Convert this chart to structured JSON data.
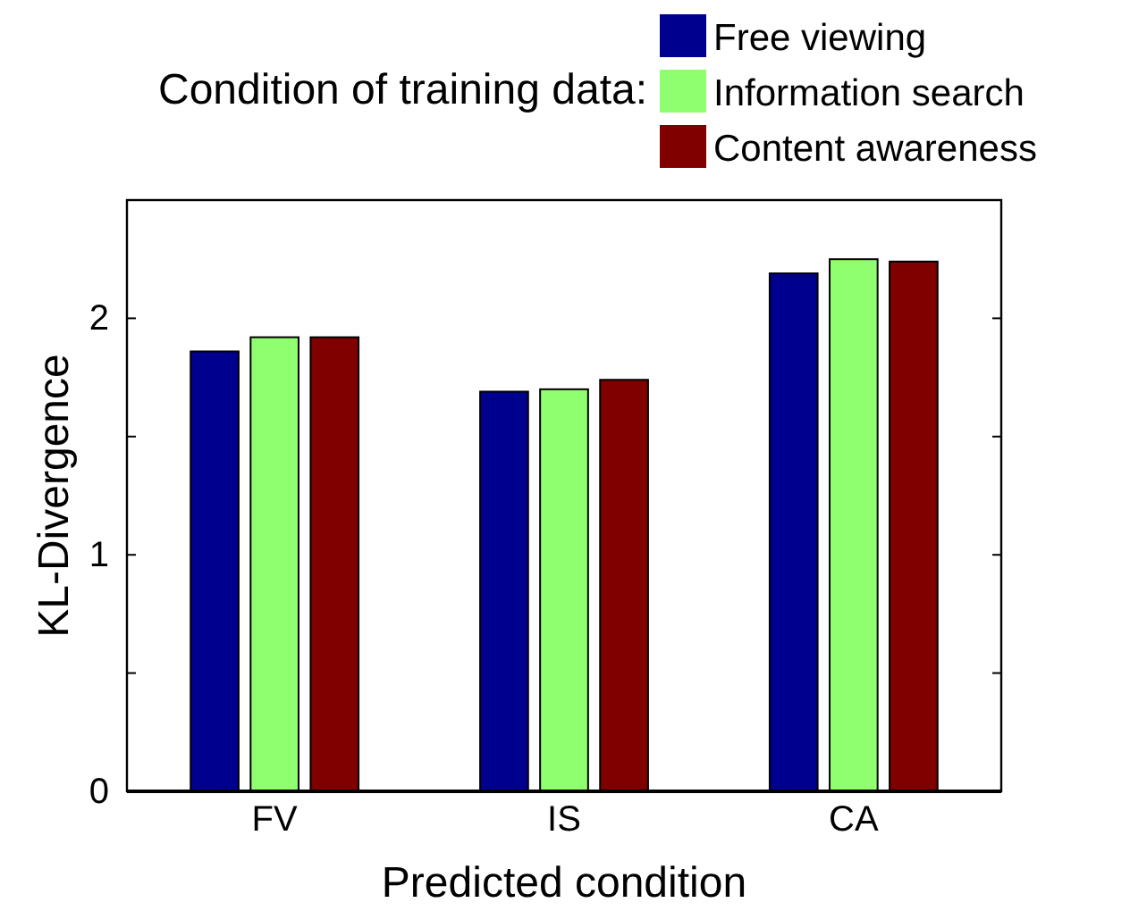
{
  "chart_data": {
    "type": "bar",
    "xlabel": "Predicted condition",
    "ylabel": "KL-Divergence",
    "legend_title": "Condition of training data:",
    "legend": "top",
    "categories": [
      "FV",
      "IS",
      "CA"
    ],
    "series": [
      {
        "name": "Free viewing",
        "color": "#00008f",
        "values": [
          1.86,
          1.69,
          2.19
        ]
      },
      {
        "name": "Information search",
        "color": "#8fff6f",
        "values": [
          1.92,
          1.7,
          2.25
        ]
      },
      {
        "name": "Content awareness",
        "color": "#800000",
        "values": [
          1.92,
          1.74,
          2.24
        ]
      }
    ],
    "ylim": [
      0,
      2.5
    ],
    "yticks": [
      0,
      {
        "value": 0.5,
        "label": null
      },
      1,
      {
        "value": 1.5,
        "label": null
      },
      2,
      {
        "value": 2.5,
        "label": null
      }
    ],
    "grid": false
  }
}
